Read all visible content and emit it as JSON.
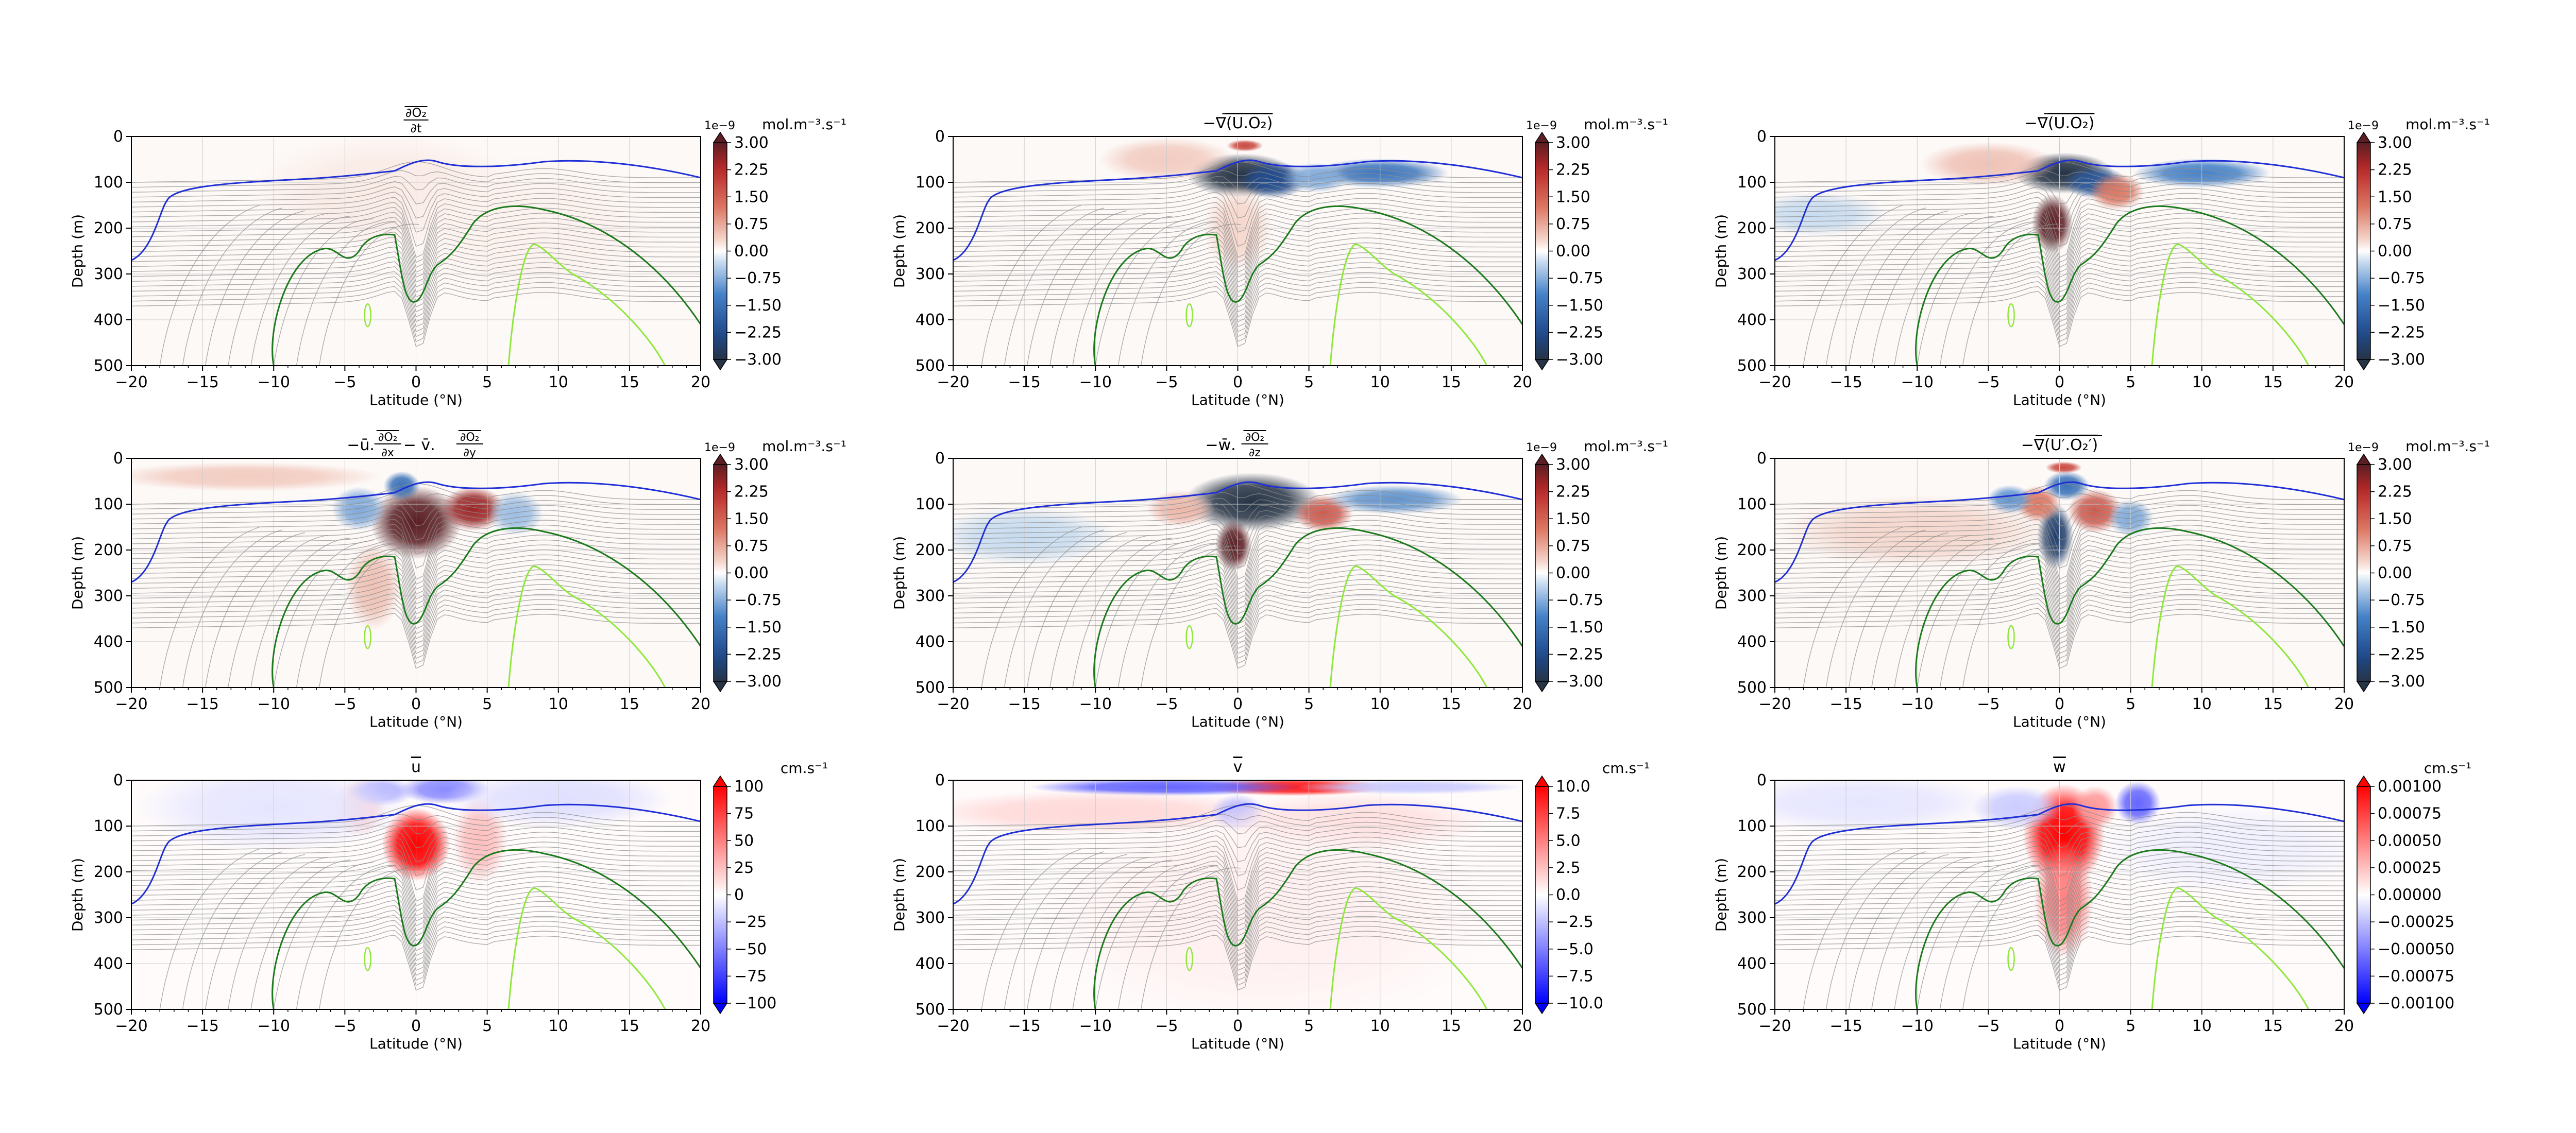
{
  "figure": {
    "common": {
      "ylabel": "Depth (m)",
      "xlabel": "Latitude (°N)",
      "x_ticks": [
        -20,
        -15,
        -10,
        -5,
        0,
        5,
        10,
        15,
        20
      ],
      "y_ticks": [
        0,
        100,
        200,
        300,
        400,
        500
      ],
      "xlim": [
        -20,
        20
      ],
      "ylim": [
        500,
        0
      ],
      "grid": true
    },
    "colors": {
      "blue_contour": "#1f2fd6",
      "green_contour": "#1b7a1b",
      "lightgreen_contour": "#8ee83a",
      "grey_contour": "#8c8c8c"
    }
  },
  "chart_data": [
    {
      "type": "heatmap",
      "title": "∂O₂/∂t",
      "title_parts": {
        "overline": "∂O₂",
        "num": "∂O₂",
        "den": "∂t",
        "prefix": ""
      },
      "colorbar_unit": "mol.m⁻³.s⁻¹",
      "colorbar_exponent": "1e−9",
      "colorbar_ticks": [
        "3.00",
        "2.25",
        "1.50",
        "0.75",
        "0.00",
        "−0.75",
        "−1.50",
        "−2.25",
        "−3.00"
      ],
      "vlim": [
        -3,
        3
      ],
      "cmap": "diverging_dark",
      "blobs": [
        {
          "lat": -2,
          "depth": 120,
          "value": 0.15,
          "wlat": 6,
          "wdep": 80
        },
        {
          "lat": 8,
          "depth": 200,
          "value": 0.1,
          "wlat": 6,
          "wdep": 100
        }
      ]
    },
    {
      "type": "heatmap",
      "title": "−∇(U.O₂)",
      "title_parts": {
        "prefix": "−∇",
        "over": "(U.O₂)",
        "num": "",
        "den": ""
      },
      "colorbar_unit": "mol.m⁻³.s⁻¹",
      "colorbar_exponent": "1e−9",
      "colorbar_ticks": [
        "3.00",
        "2.25",
        "1.50",
        "0.75",
        "0.00",
        "−0.75",
        "−1.50",
        "−2.25",
        "−3.00"
      ],
      "vlim": [
        -3,
        3
      ],
      "cmap": "diverging_dark",
      "blobs": [
        {
          "lat": 0.3,
          "depth": 85,
          "value": -3.5,
          "wlat": 2.4,
          "wdep": 30
        },
        {
          "lat": 2.5,
          "depth": 95,
          "value": -2.2,
          "wlat": 1.5,
          "wdep": 25
        },
        {
          "lat": 10,
          "depth": 80,
          "value": -1.4,
          "wlat": 3,
          "wdep": 20
        },
        {
          "lat": 5.5,
          "depth": 90,
          "value": -0.8,
          "wlat": 1.5,
          "wdep": 20
        },
        {
          "lat": -5,
          "depth": 50,
          "value": 0.4,
          "wlat": 3,
          "wdep": 30
        },
        {
          "lat": 0.5,
          "depth": 20,
          "value": 1.8,
          "wlat": 0.8,
          "wdep": 8
        },
        {
          "lat": 0,
          "depth": 200,
          "value": 0.3,
          "wlat": 1.5,
          "wdep": 60
        }
      ]
    },
    {
      "type": "heatmap",
      "title": "−∇(U.O₂)",
      "title_parts": {
        "prefix": "−∇",
        "over": "(U.O₂)",
        "num": "",
        "den": ""
      },
      "colorbar_unit": "mol.m⁻³.s⁻¹",
      "colorbar_exponent": "1e−9",
      "colorbar_ticks": [
        "3.00",
        "2.25",
        "1.50",
        "0.75",
        "0.00",
        "−0.75",
        "−1.50",
        "−2.25",
        "−3.00"
      ],
      "vlim": [
        -3,
        3
      ],
      "cmap": "diverging_dark",
      "blobs": [
        {
          "lat": 0.3,
          "depth": 80,
          "value": -3.2,
          "wlat": 2.2,
          "wdep": 28
        },
        {
          "lat": 2.5,
          "depth": 100,
          "value": -2,
          "wlat": 1.4,
          "wdep": 22
        },
        {
          "lat": 10,
          "depth": 80,
          "value": -1.2,
          "wlat": 3,
          "wdep": 20
        },
        {
          "lat": -0.5,
          "depth": 190,
          "value": 3.8,
          "wlat": 0.9,
          "wdep": 40
        },
        {
          "lat": 4,
          "depth": 120,
          "value": 1.2,
          "wlat": 1.2,
          "wdep": 25
        },
        {
          "lat": -5,
          "depth": 60,
          "value": 0.5,
          "wlat": 3,
          "wdep": 30
        },
        {
          "lat": -17,
          "depth": 170,
          "value": -0.3,
          "wlat": 3,
          "wdep": 30
        }
      ]
    },
    {
      "type": "heatmap",
      "title": "−ū.∂O₂/∂x − v̄.∂O₂/∂y",
      "title_parts": {
        "prefix": "−ū.",
        "num": "∂O₂",
        "den": "∂x",
        "mid": " − v̄.",
        "num2": "∂O₂",
        "den2": "∂y"
      },
      "colorbar_unit": "mol.m⁻³.s⁻¹",
      "colorbar_exponent": "1e−9",
      "colorbar_ticks": [
        "3.00",
        "2.25",
        "1.50",
        "0.75",
        "0.00",
        "−0.75",
        "−1.50",
        "−2.25",
        "−3.00"
      ],
      "vlim": [
        -3,
        3
      ],
      "cmap": "diverging_dark",
      "blobs": [
        {
          "lat": 0,
          "depth": 140,
          "value": 4,
          "wlat": 2,
          "wdep": 50
        },
        {
          "lat": 4,
          "depth": 110,
          "value": 2.5,
          "wlat": 1.4,
          "wdep": 30
        },
        {
          "lat": -1,
          "depth": 60,
          "value": -1.5,
          "wlat": 0.8,
          "wdep": 20
        },
        {
          "lat": -4,
          "depth": 110,
          "value": -0.8,
          "wlat": 1.2,
          "wdep": 30
        },
        {
          "lat": 7,
          "depth": 120,
          "value": -0.6,
          "wlat": 1.2,
          "wdep": 30
        },
        {
          "lat": -3,
          "depth": 280,
          "value": 0.5,
          "wlat": 1.2,
          "wdep": 60
        },
        {
          "lat": -12,
          "depth": 40,
          "value": 0.4,
          "wlat": 6,
          "wdep": 20
        }
      ]
    },
    {
      "type": "heatmap",
      "title": "−w̄.∂O₂/∂z",
      "title_parts": {
        "prefix": "−w̄.",
        "num": "∂O₂",
        "den": "∂z"
      },
      "colorbar_unit": "mol.m⁻³.s⁻¹",
      "colorbar_exponent": "1e−9",
      "colorbar_ticks": [
        "3.00",
        "2.25",
        "1.50",
        "0.75",
        "0.00",
        "−0.75",
        "−1.50",
        "−2.25",
        "−3.00"
      ],
      "vlim": [
        -3,
        3
      ],
      "cmap": "diverging_dark",
      "blobs": [
        {
          "lat": 1,
          "depth": 95,
          "value": -3.8,
          "wlat": 3,
          "wdep": 40
        },
        {
          "lat": -0.3,
          "depth": 190,
          "value": 3.6,
          "wlat": 0.8,
          "wdep": 35
        },
        {
          "lat": 6,
          "depth": 120,
          "value": 1.6,
          "wlat": 1.3,
          "wdep": 25
        },
        {
          "lat": 11,
          "depth": 90,
          "value": -1,
          "wlat": 3,
          "wdep": 20
        },
        {
          "lat": -4,
          "depth": 110,
          "value": 0.6,
          "wlat": 1.5,
          "wdep": 25
        },
        {
          "lat": -15,
          "depth": 170,
          "value": -0.3,
          "wlat": 4,
          "wdep": 40
        }
      ]
    },
    {
      "type": "heatmap",
      "title": "−∇(U′.O₂′)",
      "title_parts": {
        "prefix": "−∇",
        "over": "(U′.O₂′)",
        "num": "",
        "den": ""
      },
      "colorbar_unit": "mol.m⁻³.s⁻¹",
      "colorbar_exponent": "1e−9",
      "colorbar_ticks": [
        "3.00",
        "2.25",
        "1.50",
        "0.75",
        "0.00",
        "−0.75",
        "−1.50",
        "−2.25",
        "−3.00"
      ],
      "vlim": [
        -3,
        3
      ],
      "cmap": "diverging_dark",
      "blobs": [
        {
          "lat": -0.3,
          "depth": 170,
          "value": -2.6,
          "wlat": 0.8,
          "wdep": 45
        },
        {
          "lat": 0.3,
          "depth": 20,
          "value": 1.8,
          "wlat": 0.8,
          "wdep": 8
        },
        {
          "lat": 2.5,
          "depth": 115,
          "value": 1.6,
          "wlat": 1.2,
          "wdep": 30
        },
        {
          "lat": -1.5,
          "depth": 100,
          "value": 1.2,
          "wlat": 1,
          "wdep": 25
        },
        {
          "lat": 0.5,
          "depth": 60,
          "value": -1.5,
          "wlat": 1,
          "wdep": 20
        },
        {
          "lat": -3.5,
          "depth": 90,
          "value": -1,
          "wlat": 1,
          "wdep": 20
        },
        {
          "lat": 5,
          "depth": 130,
          "value": -0.8,
          "wlat": 1,
          "wdep": 25
        },
        {
          "lat": -10,
          "depth": 160,
          "value": 0.3,
          "wlat": 6,
          "wdep": 50
        }
      ]
    },
    {
      "type": "heatmap",
      "title": "ū",
      "title_parts": {
        "prefix": "",
        "over": "u",
        "num": "",
        "den": ""
      },
      "colorbar_unit": "cm.s⁻¹",
      "colorbar_exponent": "",
      "colorbar_ticks": [
        "100",
        "75",
        "50",
        "25",
        "0",
        "−25",
        "−50",
        "−75",
        "−100"
      ],
      "vlim": [
        -100,
        100
      ],
      "cmap": "diverging_bright",
      "blobs": [
        {
          "lat": 0,
          "depth": 140,
          "value": 110,
          "wlat": 1.5,
          "wdep": 50
        },
        {
          "lat": 4.5,
          "depth": 130,
          "value": 25,
          "wlat": 1.2,
          "wdep": 60
        },
        {
          "lat": -4,
          "depth": 60,
          "value": 20,
          "wlat": 1.2,
          "wdep": 40
        },
        {
          "lat": 2,
          "depth": 20,
          "value": -45,
          "wlat": 2,
          "wdep": 20
        },
        {
          "lat": -2.5,
          "depth": 25,
          "value": -30,
          "wlat": 1.5,
          "wdep": 20
        },
        {
          "lat": 10,
          "depth": 40,
          "value": -12,
          "wlat": 5,
          "wdep": 40
        },
        {
          "lat": -10,
          "depth": 60,
          "value": -10,
          "wlat": 6,
          "wdep": 60
        }
      ]
    },
    {
      "type": "heatmap",
      "title": "v̄",
      "title_parts": {
        "prefix": "",
        "over": "v",
        "num": "",
        "den": ""
      },
      "colorbar_unit": "cm.s⁻¹",
      "colorbar_exponent": "",
      "colorbar_ticks": [
        "10.0",
        "7.5",
        "5.0",
        "2.5",
        "0.0",
        "−2.5",
        "−5.0",
        "−7.5",
        "−10.0"
      ],
      "vlim": [
        -10,
        10
      ],
      "cmap": "diverging_bright",
      "blobs": [
        {
          "lat": 4,
          "depth": 15,
          "value": 9,
          "wlat": 4,
          "wdep": 12
        },
        {
          "lat": -5,
          "depth": 15,
          "value": -6,
          "wlat": 6,
          "wdep": 12
        },
        {
          "lat": 12,
          "depth": 15,
          "value": -2,
          "wlat": 5,
          "wdep": 10
        },
        {
          "lat": -10,
          "depth": 70,
          "value": 1.5,
          "wlat": 8,
          "wdep": 30
        },
        {
          "lat": 0,
          "depth": 70,
          "value": -2.5,
          "wlat": 1.2,
          "wdep": 25
        },
        {
          "lat": 8,
          "depth": 90,
          "value": 1.2,
          "wlat": 6,
          "wdep": 40
        },
        {
          "lat": 2,
          "depth": 300,
          "value": 0.6,
          "wlat": 10,
          "wdep": 150
        }
      ]
    },
    {
      "type": "heatmap",
      "title": "w̄",
      "title_parts": {
        "prefix": "",
        "over": "w",
        "num": "",
        "den": ""
      },
      "colorbar_unit": "cm.s⁻¹",
      "colorbar_exponent": "",
      "colorbar_ticks": [
        "0.00100",
        "0.00075",
        "0.00050",
        "0.00025",
        "0.00000",
        "−0.00025",
        "−0.00050",
        "−0.00075",
        "−0.00100"
      ],
      "vlim": [
        -0.001,
        0.001
      ],
      "cmap": "diverging_bright",
      "blobs": [
        {
          "lat": 0.3,
          "depth": 120,
          "value": 0.0011,
          "wlat": 1.8,
          "wdep": 70
        },
        {
          "lat": 0.3,
          "depth": 260,
          "value": 0.0005,
          "wlat": 1.3,
          "wdep": 80
        },
        {
          "lat": 5.5,
          "depth": 50,
          "value": -0.0006,
          "wlat": 1,
          "wdep": 30
        },
        {
          "lat": 2.5,
          "depth": 60,
          "value": 0.0004,
          "wlat": 1,
          "wdep": 30
        },
        {
          "lat": -3,
          "depth": 60,
          "value": -0.0002,
          "wlat": 2,
          "wdep": 30
        },
        {
          "lat": -14,
          "depth": 50,
          "value": -0.0001,
          "wlat": 6,
          "wdep": 40
        },
        {
          "lat": 12,
          "depth": 150,
          "value": -6e-05,
          "wlat": 6,
          "wdep": 60
        }
      ]
    }
  ]
}
